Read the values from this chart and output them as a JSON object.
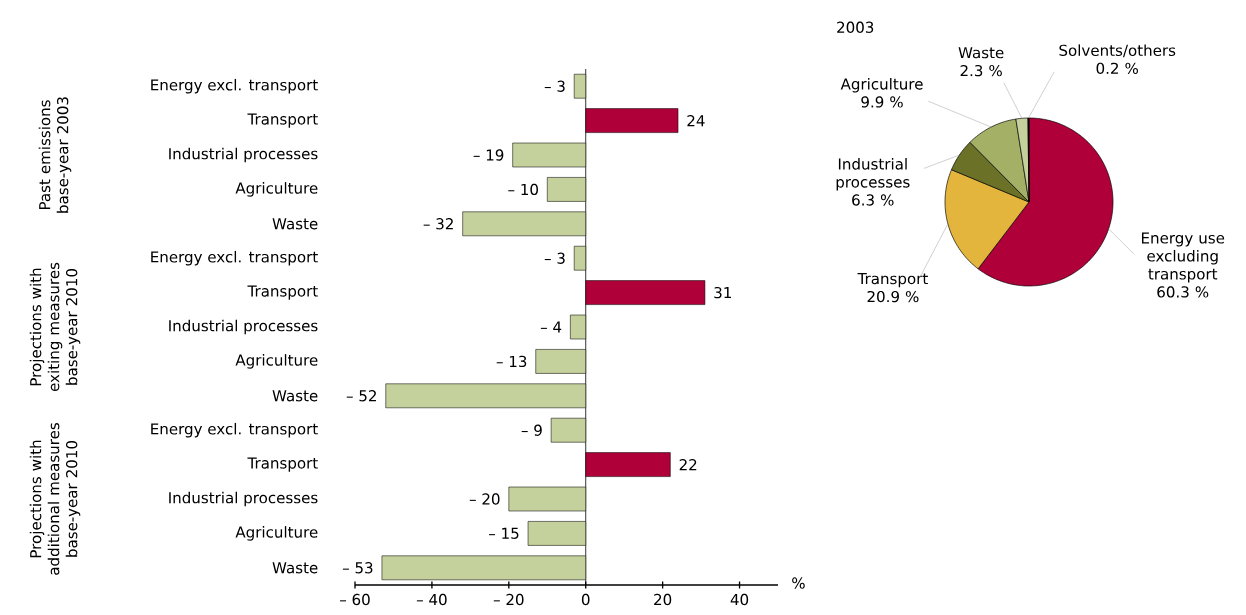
{
  "chart_data": [
    {
      "type": "bar",
      "orientation": "horizontal",
      "categories": [
        "Energy excl. transport",
        "Transport",
        "Industrial processes",
        "Agriculture",
        "Waste",
        "Energy excl. transport",
        "Transport",
        "Industrial processes",
        "Agriculture",
        "Waste",
        "Energy excl. transport",
        "Transport",
        "Industrial processes",
        "Agriculture",
        "Waste"
      ],
      "values": [
        -3,
        24,
        -19,
        -10,
        -32,
        -3,
        31,
        -4,
        -13,
        -52,
        -9,
        22,
        -20,
        -15,
        -53
      ],
      "colors": [
        "#c4d19c",
        "#b0003a",
        "#c4d19c",
        "#c4d19c",
        "#c4d19c",
        "#c4d19c",
        "#b0003a",
        "#c4d19c",
        "#c4d19c",
        "#c4d19c",
        "#c4d19c",
        "#b0003a",
        "#c4d19c",
        "#c4d19c",
        "#c4d19c"
      ],
      "value_labels": [
        "– 3",
        "24",
        "– 19",
        "– 10",
        "– 32",
        "– 3",
        "31",
        "– 4",
        "– 13",
        "– 52",
        "– 9",
        "22",
        "– 20",
        "– 15",
        "– 53"
      ],
      "xlim": [
        -60,
        50
      ],
      "xticks": [
        {
          "value": -60,
          "label": "– 60"
        },
        {
          "value": -40,
          "label": "– 40"
        },
        {
          "value": -20,
          "label": "– 20"
        },
        0,
        20,
        40
      ],
      "xlabel": "%",
      "annotations": [
        "Past emissions base-year 2003",
        "Projections with exiting measures base-year 2010",
        "Projections with additional measures base-year 2010"
      ]
    },
    {
      "type": "pie",
      "title": "2003",
      "categories": [
        "Energy use excluding transport",
        "Transport",
        "Industrial processes",
        "Agriculture",
        "Waste",
        "Solvents/others"
      ],
      "values": [
        60.3,
        20.9,
        6.3,
        9.9,
        2.3,
        0.2
      ],
      "colors": [
        "#b0003a",
        "#e3b53c",
        "#6b7228",
        "#a4b066",
        "#c4d19c",
        "#000000"
      ],
      "value_labels": [
        "60.3 %",
        "20.9 %",
        "6.3 %",
        "9.9 %",
        "2.3 %",
        "0.2 %"
      ]
    }
  ]
}
